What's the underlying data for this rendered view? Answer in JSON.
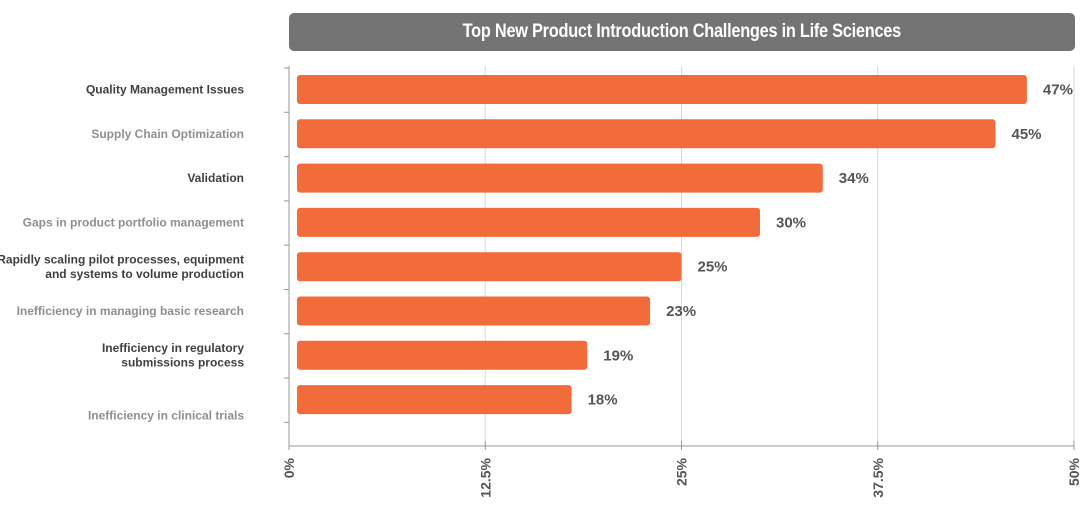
{
  "chart_data": {
    "type": "bar",
    "orientation": "horizontal",
    "title": "Top New Product Introduction Challenges in Life Sciences",
    "categories": [
      [
        "Quality Management Issues"
      ],
      [
        "Supply Chain Optimization"
      ],
      [
        "Validation"
      ],
      [
        "Gaps in product portfolio management"
      ],
      [
        "Rapidly scaling pilot processes, equipment",
        "and systems to volume production"
      ],
      [
        "Inefficiency in managing basic research"
      ],
      [
        "Inefficiency in regulatory",
        "submissions process"
      ],
      [
        "Inefficiency in clinical trials"
      ]
    ],
    "label_colors": [
      "#404040",
      "#8f8f8f",
      "#404040",
      "#8f8f8f",
      "#404040",
      "#8f8f8f",
      "#404040",
      "#8f8f8f"
    ],
    "values": [
      47,
      45,
      34,
      30,
      25,
      23,
      19,
      18
    ],
    "value_labels": [
      "47%",
      "45%",
      "34%",
      "30%",
      "25%",
      "23%",
      "19%",
      "18%"
    ],
    "xlim": [
      0,
      50
    ],
    "xticks": [
      0,
      12.5,
      25,
      37.5,
      50
    ],
    "xtick_labels": [
      "0%",
      "12.5%",
      "25%",
      "37.5%",
      "50%"
    ],
    "grid": true,
    "bar_color": "#f26b3a",
    "title_bar_color": "#747474"
  }
}
